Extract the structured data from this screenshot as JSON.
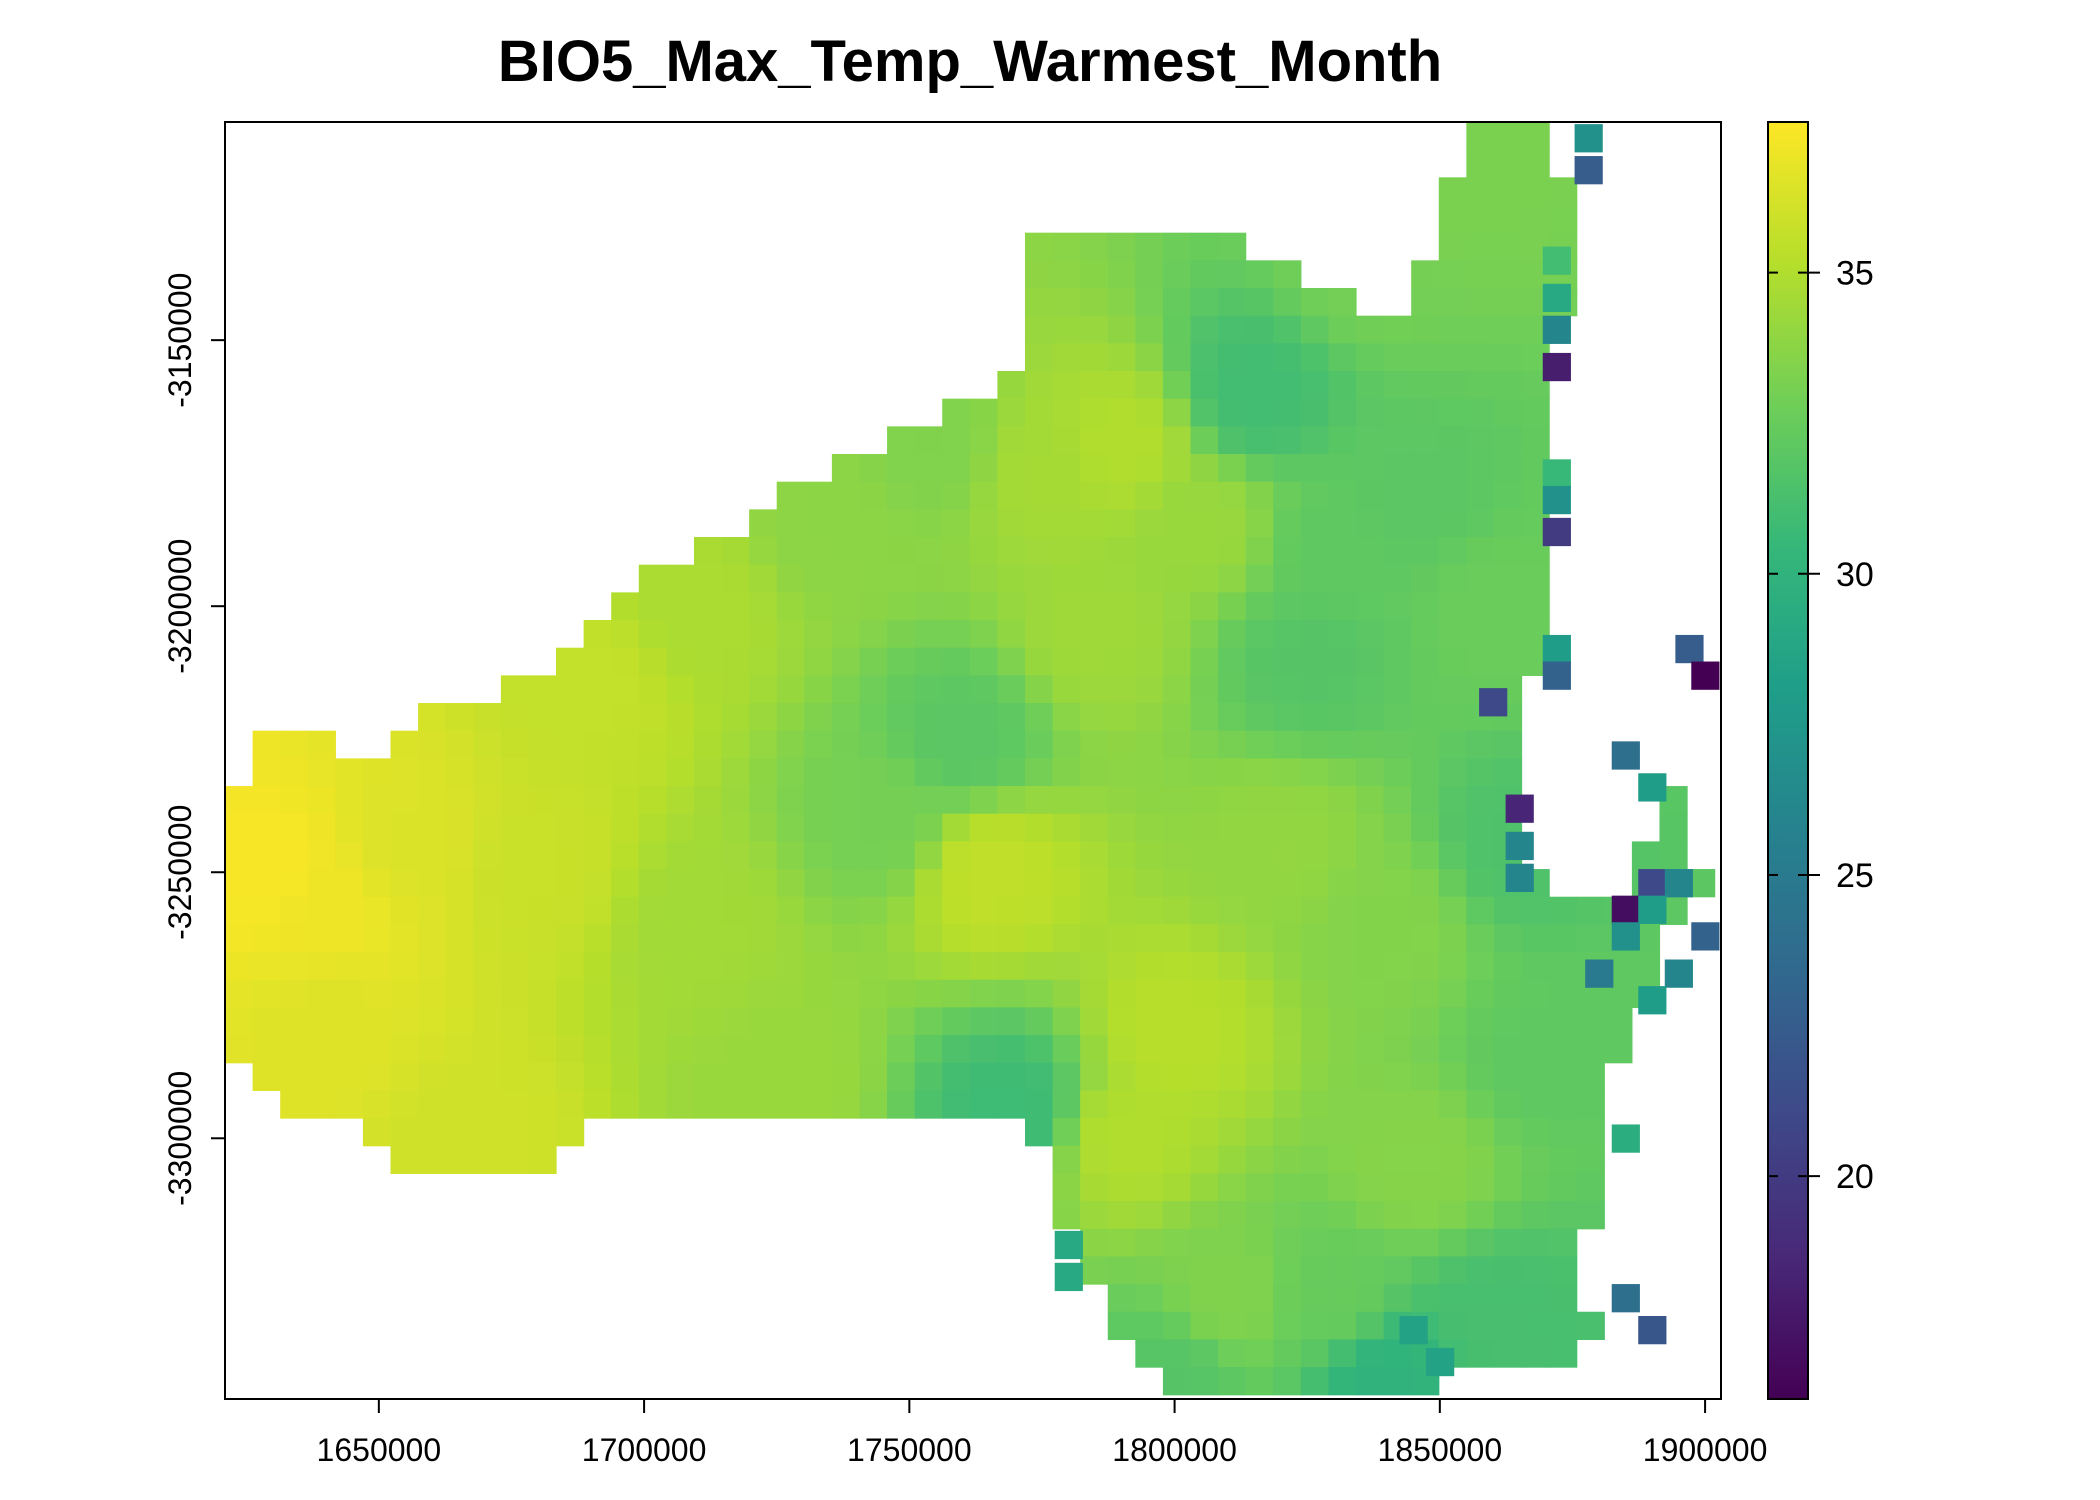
{
  "chart_data": {
    "type": "heatmap",
    "title": "BIO5_Max_Temp_Warmest_Month",
    "xlabel": "",
    "ylabel": "",
    "x_ticks": [
      1650000,
      1700000,
      1750000,
      1800000,
      1850000,
      1900000
    ],
    "y_ticks": [
      -3150000,
      -3200000,
      -3250000,
      -3300000
    ],
    "xlim": [
      1621000,
      1903000
    ],
    "ylim": [
      -3349000,
      -3109000
    ],
    "cell_size": 5200,
    "colorbar": {
      "ticks": [
        20,
        25,
        30,
        35
      ],
      "range": [
        16.3,
        37.5
      ],
      "palette": "viridis"
    },
    "grid": false,
    "legend": "right",
    "region_outline": [
      [
        1621000,
        -3240000
      ],
      [
        1631000,
        -3220000
      ],
      [
        1648000,
        -3232000
      ],
      [
        1660000,
        -3220000
      ],
      [
        1680000,
        -3212000
      ],
      [
        1700000,
        -3195000
      ],
      [
        1725000,
        -3180000
      ],
      [
        1745000,
        -3168000
      ],
      [
        1760000,
        -3162000
      ],
      [
        1772000,
        -3154000
      ],
      [
        1772000,
        -3132000
      ],
      [
        1795000,
        -3130000
      ],
      [
        1815000,
        -3132000
      ],
      [
        1825000,
        -3138000
      ],
      [
        1840000,
        -3148000
      ],
      [
        1850000,
        -3128000
      ],
      [
        1854000,
        -3110000
      ],
      [
        1870000,
        -3110000
      ],
      [
        1875000,
        -3125000
      ],
      [
        1873000,
        -3150000
      ],
      [
        1873000,
        -3210000
      ],
      [
        1868000,
        -3215000
      ],
      [
        1867000,
        -3250000
      ],
      [
        1885000,
        -3257000
      ],
      [
        1893000,
        -3230000
      ],
      [
        1900000,
        -3252000
      ],
      [
        1893000,
        -3262000
      ],
      [
        1888000,
        -3277000
      ],
      [
        1880000,
        -3297000
      ],
      [
        1877000,
        -3330000
      ],
      [
        1882000,
        -3336000
      ],
      [
        1876000,
        -3343000
      ],
      [
        1850000,
        -3342000
      ],
      [
        1848000,
        -3349000
      ],
      [
        1805000,
        -3349000
      ],
      [
        1794000,
        -3342000
      ],
      [
        1785000,
        -3330000
      ],
      [
        1778000,
        -3310000
      ],
      [
        1773000,
        -3298000
      ],
      [
        1750000,
        -3298000
      ],
      [
        1735000,
        -3298000
      ],
      [
        1715000,
        -3296000
      ],
      [
        1690000,
        -3296000
      ],
      [
        1685000,
        -3305000
      ],
      [
        1660000,
        -3308000
      ],
      [
        1645000,
        -3298000
      ],
      [
        1630000,
        -3292000
      ],
      [
        1621000,
        -3282000
      ]
    ],
    "control_points": [
      [
        1630000,
        -3250000,
        37.3
      ],
      [
        1640000,
        -3255000,
        37.0
      ],
      [
        1655000,
        -3245000,
        36.4
      ],
      [
        1640000,
        -3280000,
        36.5
      ],
      [
        1665000,
        -3300000,
        36.0
      ],
      [
        1690000,
        -3215000,
        35.6
      ],
      [
        1680000,
        -3250000,
        35.8
      ],
      [
        1710000,
        -3200000,
        34.8
      ],
      [
        1710000,
        -3260000,
        34.5
      ],
      [
        1725000,
        -3290000,
        34.2
      ],
      [
        1735000,
        -3185000,
        33.8
      ],
      [
        1745000,
        -3240000,
        33.0
      ],
      [
        1755000,
        -3170000,
        33.4
      ],
      [
        1765000,
        -3250000,
        35.5
      ],
      [
        1775000,
        -3175000,
        34.6
      ],
      [
        1785000,
        -3205000,
        34.4
      ],
      [
        1790000,
        -3170000,
        35.0
      ],
      [
        1760000,
        -3225000,
        32.0
      ],
      [
        1770000,
        -3295000,
        30.8
      ],
      [
        1790000,
        -3300000,
        35.0
      ],
      [
        1800000,
        -3280000,
        35.2
      ],
      [
        1805000,
        -3185000,
        34.2
      ],
      [
        1815000,
        -3160000,
        31.0
      ],
      [
        1820000,
        -3245000,
        34.0
      ],
      [
        1825000,
        -3210000,
        31.8
      ],
      [
        1830000,
        -3190000,
        32.2
      ],
      [
        1835000,
        -3135000,
        33.0
      ],
      [
        1840000,
        -3260000,
        33.5
      ],
      [
        1845000,
        -3180000,
        32.0
      ],
      [
        1855000,
        -3120000,
        33.2
      ],
      [
        1860000,
        -3200000,
        32.6
      ],
      [
        1865000,
        -3245000,
        31.5
      ],
      [
        1845000,
        -3305000,
        33.6
      ],
      [
        1830000,
        -3330000,
        32.5
      ],
      [
        1840000,
        -3345000,
        30.0
      ],
      [
        1860000,
        -3335000,
        31.2
      ],
      [
        1870000,
        -3285000,
        32.2
      ],
      [
        1810000,
        -3330000,
        33.4
      ],
      [
        1800000,
        -3345000,
        31.8
      ]
    ],
    "outlier_cells": [
      [
        1878000,
        -3112000,
        27.0
      ],
      [
        1878000,
        -3118000,
        22.5
      ],
      [
        1872000,
        -3135000,
        31.0
      ],
      [
        1872000,
        -3142000,
        29.0
      ],
      [
        1872000,
        -3148000,
        26.0
      ],
      [
        1872000,
        -3155000,
        18.0
      ],
      [
        1872000,
        -3175000,
        30.5
      ],
      [
        1872000,
        -3180000,
        27.0
      ],
      [
        1872000,
        -3186000,
        20.0
      ],
      [
        1872000,
        -3208000,
        28.0
      ],
      [
        1872000,
        -3213000,
        23.0
      ],
      [
        1860000,
        -3218000,
        21.0
      ],
      [
        1865000,
        -3238000,
        18.5
      ],
      [
        1865000,
        -3245000,
        26.0
      ],
      [
        1865000,
        -3251000,
        26.0
      ],
      [
        1897000,
        -3208000,
        22.5
      ],
      [
        1900000,
        -3213000,
        16.3
      ],
      [
        1885000,
        -3228000,
        24.0
      ],
      [
        1890000,
        -3234000,
        28.0
      ],
      [
        1890000,
        -3252000,
        21.0
      ],
      [
        1895000,
        -3252000,
        26.0
      ],
      [
        1885000,
        -3257000,
        17.0
      ],
      [
        1890000,
        -3257000,
        28.0
      ],
      [
        1885000,
        -3262000,
        27.0
      ],
      [
        1900000,
        -3262000,
        23.0
      ],
      [
        1895000,
        -3269000,
        26.0
      ],
      [
        1880000,
        -3269000,
        25.0
      ],
      [
        1890000,
        -3274000,
        28.0
      ],
      [
        1885000,
        -3300000,
        29.5
      ],
      [
        1885000,
        -3330000,
        24.0
      ],
      [
        1890000,
        -3336000,
        22.0
      ],
      [
        1780000,
        -3320000,
        29.0
      ],
      [
        1780000,
        -3326000,
        29.0
      ],
      [
        1845000,
        -3336000,
        28.5
      ],
      [
        1850000,
        -3342000,
        28.5
      ]
    ]
  }
}
